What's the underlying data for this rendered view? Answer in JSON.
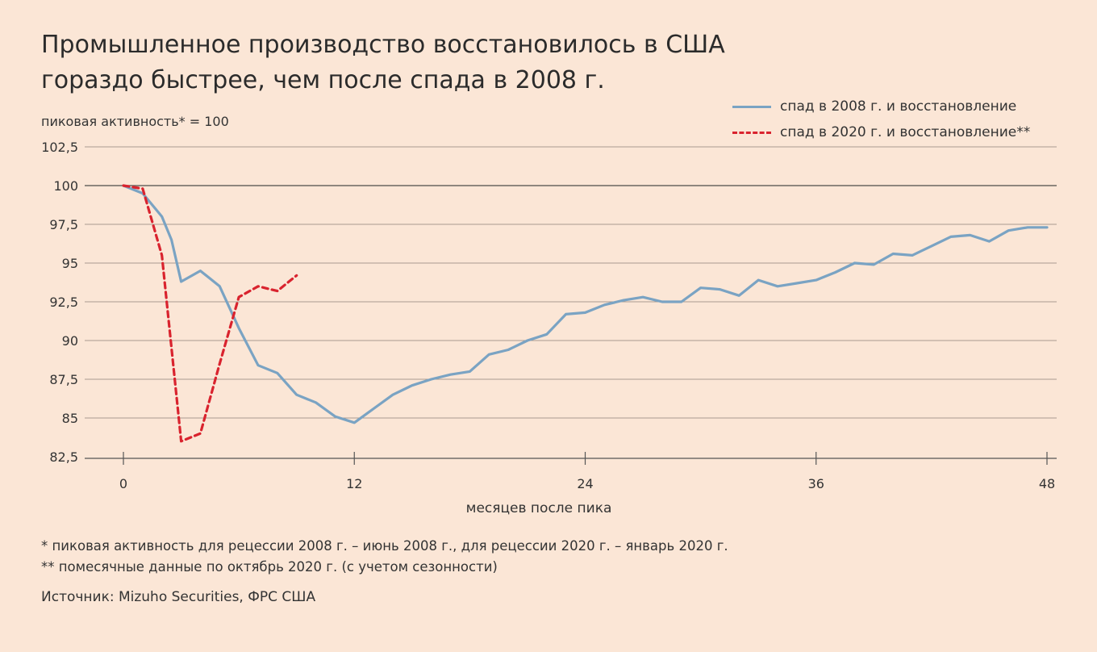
{
  "chart_data": {
    "type": "line",
    "title_line1": "Промышленное производство восстановилось в США",
    "title_line2": "гораздо быстрее, чем после спада в 2008 г.",
    "ylabel": "пиковая активность* = 100",
    "xlabel": "месяцев после пика",
    "xlim": [
      0,
      48
    ],
    "ylim": [
      82.5,
      102.5
    ],
    "x_ticks": [
      0,
      12,
      24,
      36,
      48
    ],
    "y_ticks": [
      "102,5",
      "100",
      "97,5",
      "95",
      "92,5",
      "90",
      "87,5",
      "85",
      "82,5"
    ],
    "y_tick_values": [
      102.5,
      100,
      97.5,
      95,
      92.5,
      90,
      87.5,
      85,
      82.5
    ],
    "legend_position": "top-right",
    "series": [
      {
        "name": "спад в 2008 г. и восстановление",
        "color": "#7aa3c3",
        "style": "solid",
        "x": [
          0,
          1,
          2,
          2.5,
          3,
          4,
          5,
          6,
          7,
          8,
          9,
          10,
          11,
          12,
          13,
          14,
          15,
          16,
          17,
          18,
          19,
          20,
          21,
          22,
          23,
          24,
          25,
          26,
          27,
          28,
          29,
          30,
          31,
          32,
          33,
          34,
          35,
          36,
          37,
          38,
          39,
          40,
          41,
          42,
          43,
          44,
          45,
          46,
          47,
          48
        ],
        "y": [
          100,
          99.5,
          98,
          96.5,
          93.8,
          94.5,
          93.5,
          90.8,
          88.4,
          87.9,
          86.5,
          86,
          85.1,
          84.7,
          85.6,
          86.5,
          87.1,
          87.5,
          87.8,
          88,
          89.1,
          89.4,
          90,
          90.4,
          91.7,
          91.8,
          92.3,
          92.6,
          92.8,
          92.5,
          92.5,
          93.4,
          93.3,
          92.9,
          93.9,
          93.5,
          93.7,
          93.9,
          94.4,
          95,
          94.9,
          95.6,
          95.5,
          96.1,
          96.7,
          96.8,
          96.4,
          97.1,
          97.3,
          97.3
        ]
      },
      {
        "name": "спад в 2020 г. и восстановление**",
        "color": "#d9232e",
        "style": "dashed",
        "x": [
          0,
          1,
          2,
          3,
          4,
          5,
          6,
          7,
          8,
          9
        ],
        "y": [
          100,
          99.8,
          95.5,
          83.5,
          84,
          88.5,
          92.8,
          93.5,
          93.2,
          94.2
        ]
      }
    ]
  },
  "footnote1": "* пиковая активность для рецессии 2008 г. – июнь 2008 г., для рецессии 2020 г. – январь 2020 г.",
  "footnote2": "** помесячные данные по октябрь 2020 г. (с учетом сезонности)",
  "source": "Источник: Mizuho Securities, ФРС США",
  "colors": {
    "background": "#fbe6d6",
    "grid": "#a89a90",
    "axis": "#555555"
  }
}
